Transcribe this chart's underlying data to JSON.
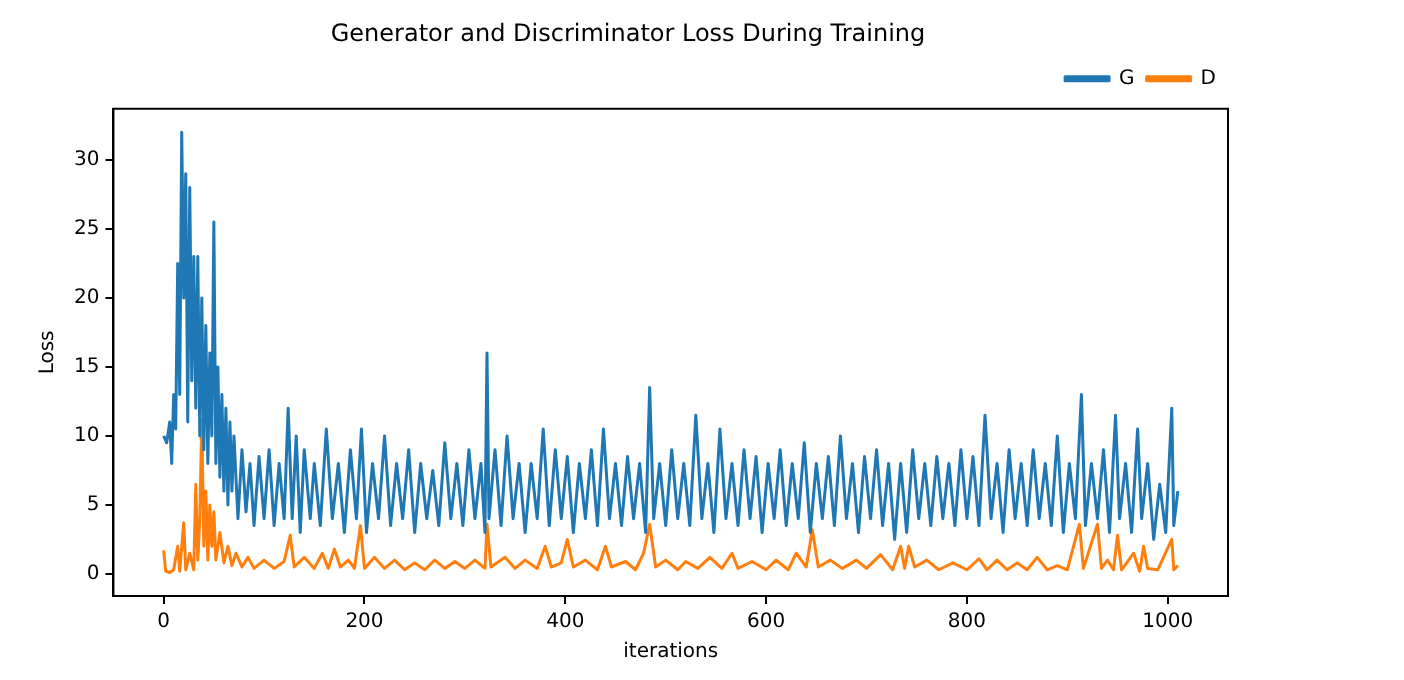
{
  "chart_data": {
    "type": "line",
    "title": "Generator and Discriminator Loss During Training",
    "xlabel": "iterations",
    "ylabel": "Loss",
    "xlim": [
      -50,
      1060
    ],
    "ylim": [
      -1.6,
      33.7
    ],
    "xticks": [
      0,
      200,
      400,
      600,
      800,
      1000
    ],
    "yticks": [
      0,
      5,
      10,
      15,
      20,
      25,
      30
    ],
    "grid": false,
    "legend": "top right",
    "marker": "none",
    "line_style": "solid",
    "series": [
      {
        "name": "G",
        "color": "#1f77b4",
        "x": [
          0,
          3,
          6,
          8,
          10,
          12,
          14,
          16,
          18,
          20,
          22,
          24,
          26,
          28,
          30,
          32,
          34,
          36,
          38,
          40,
          42,
          44,
          46,
          48,
          50,
          52,
          54,
          56,
          58,
          60,
          62,
          64,
          66,
          68,
          70,
          74,
          78,
          82,
          86,
          90,
          95,
          100,
          105,
          110,
          115,
          120,
          124,
          128,
          132,
          136,
          140,
          146,
          150,
          156,
          162,
          168,
          174,
          180,
          186,
          192,
          197,
          202,
          208,
          214,
          220,
          226,
          232,
          238,
          244,
          250,
          256,
          262,
          268,
          274,
          280,
          286,
          292,
          298,
          304,
          310,
          316,
          320,
          322,
          324,
          330,
          336,
          342,
          348,
          354,
          360,
          366,
          372,
          378,
          384,
          390,
          396,
          402,
          408,
          414,
          420,
          426,
          432,
          438,
          444,
          450,
          456,
          462,
          468,
          474,
          480,
          484,
          488,
          494,
          500,
          506,
          512,
          518,
          524,
          530,
          536,
          542,
          548,
          554,
          560,
          566,
          572,
          578,
          584,
          590,
          596,
          602,
          608,
          614,
          620,
          626,
          632,
          638,
          644,
          650,
          656,
          662,
          668,
          674,
          680,
          686,
          692,
          698,
          704,
          710,
          716,
          722,
          728,
          734,
          740,
          746,
          752,
          758,
          764,
          770,
          776,
          782,
          788,
          794,
          800,
          806,
          812,
          818,
          824,
          830,
          836,
          842,
          848,
          854,
          860,
          866,
          872,
          878,
          884,
          890,
          896,
          902,
          908,
          914,
          918,
          924,
          930,
          936,
          942,
          948,
          952,
          958,
          964,
          970,
          974,
          980,
          986,
          992,
          998,
          1004,
          1006,
          1010
        ],
        "values": [
          10,
          9.5,
          11,
          8,
          13,
          10.5,
          22.5,
          13,
          32,
          20,
          29,
          11,
          28,
          14,
          23,
          12,
          23,
          10,
          20,
          9,
          18,
          8,
          16,
          10,
          25.5,
          8,
          15,
          7,
          13,
          6,
          12,
          5,
          11,
          6,
          10,
          4,
          9,
          4.5,
          8,
          3.5,
          8.5,
          4,
          9,
          3.5,
          8,
          4,
          12,
          4,
          10,
          3,
          9,
          4,
          8,
          3.5,
          10.5,
          4,
          8,
          3,
          9,
          4,
          10.5,
          3,
          8,
          4,
          10,
          3.5,
          8,
          4,
          9,
          3,
          8,
          4,
          7.5,
          3.5,
          9.5,
          4,
          8,
          3.5,
          9,
          4,
          8,
          3,
          16,
          4,
          9,
          3.5,
          10,
          4,
          8,
          3,
          8,
          4,
          10.5,
          3.5,
          9,
          4,
          8.5,
          3,
          8,
          4,
          9,
          3.5,
          10.5,
          4,
          8,
          3.5,
          8.5,
          4,
          8,
          3,
          13.5,
          4,
          8,
          3.5,
          9,
          4,
          8,
          3.5,
          11.5,
          4,
          8,
          3,
          10.5,
          4,
          8,
          3.5,
          9,
          4,
          8.5,
          3,
          8,
          4,
          9,
          3.5,
          8,
          4,
          9.5,
          3,
          8,
          4,
          8.5,
          3.5,
          10,
          4,
          8,
          3,
          8.5,
          4,
          9,
          3.5,
          8,
          2.5,
          8,
          3,
          9,
          4,
          8,
          3.5,
          8.5,
          4,
          8,
          3.5,
          9,
          4,
          8.5,
          3.5,
          11.5,
          4,
          8,
          3,
          9,
          4,
          8,
          3.5,
          9,
          4,
          8,
          3.5,
          10,
          3,
          8,
          4,
          13,
          3.5,
          8,
          4,
          9,
          3,
          11.5,
          4,
          8,
          3,
          10.5,
          4,
          8,
          2.5,
          6.5,
          3,
          12,
          3.5,
          6
        ]
      },
      {
        "name": "D",
        "color": "#ff7f0e",
        "x": [
          0,
          2,
          6,
          10,
          14,
          16,
          20,
          22,
          26,
          30,
          32,
          34,
          36,
          38,
          40,
          42,
          44,
          46,
          48,
          50,
          52,
          56,
          60,
          64,
          68,
          72,
          78,
          84,
          90,
          100,
          110,
          120,
          126,
          130,
          140,
          150,
          158,
          164,
          170,
          176,
          184,
          190,
          196,
          200,
          210,
          220,
          230,
          240,
          250,
          260,
          270,
          280,
          290,
          300,
          310,
          320,
          322,
          326,
          340,
          350,
          360,
          372,
          380,
          386,
          396,
          402,
          408,
          420,
          432,
          440,
          446,
          460,
          470,
          478,
          484,
          490,
          500,
          512,
          520,
          532,
          544,
          556,
          566,
          572,
          586,
          600,
          610,
          622,
          630,
          640,
          646,
          652,
          664,
          676,
          690,
          700,
          714,
          726,
          734,
          738,
          742,
          748,
          760,
          772,
          786,
          800,
          812,
          820,
          830,
          840,
          850,
          860,
          870,
          880,
          890,
          900,
          912,
          916,
          930,
          934,
          940,
          946,
          950,
          954,
          966,
          972,
          976,
          980,
          990,
          1004,
          1006,
          1010
        ],
        "values": [
          1.7,
          0.2,
          0.1,
          0.3,
          2,
          0.2,
          3.7,
          0.3,
          1.5,
          0.3,
          6.5,
          1,
          4,
          11.2,
          2,
          6,
          1,
          5,
          2,
          4.5,
          1,
          3,
          0.8,
          2,
          0.6,
          1.5,
          0.5,
          1.2,
          0.4,
          1,
          0.4,
          0.9,
          2.8,
          0.5,
          1.2,
          0.4,
          1.5,
          0.4,
          1.8,
          0.5,
          1,
          0.4,
          3.5,
          0.4,
          1.2,
          0.4,
          1,
          0.3,
          0.8,
          0.3,
          1,
          0.4,
          0.9,
          0.4,
          1,
          0.4,
          3.6,
          0.5,
          1.2,
          0.4,
          1,
          0.4,
          2,
          0.5,
          0.8,
          2.5,
          0.5,
          1,
          0.3,
          2,
          0.5,
          0.9,
          0.3,
          1.5,
          3.6,
          0.5,
          1,
          0.3,
          0.9,
          0.4,
          1.2,
          0.4,
          1.5,
          0.4,
          0.9,
          0.3,
          1,
          0.3,
          1.5,
          0.5,
          3.2,
          0.5,
          1,
          0.4,
          1,
          0.4,
          1.4,
          0.3,
          2,
          0.4,
          2,
          0.5,
          1,
          0.3,
          0.8,
          0.3,
          1.1,
          0.3,
          1,
          0.3,
          0.8,
          0.3,
          1.2,
          0.3,
          0.6,
          0.3,
          3.6,
          0.4,
          3.6,
          0.4,
          1,
          0.3,
          2.8,
          0.3,
          1.5,
          0.2,
          2,
          0.4,
          0.3,
          2.5,
          0.3,
          0.6
        ]
      }
    ]
  }
}
